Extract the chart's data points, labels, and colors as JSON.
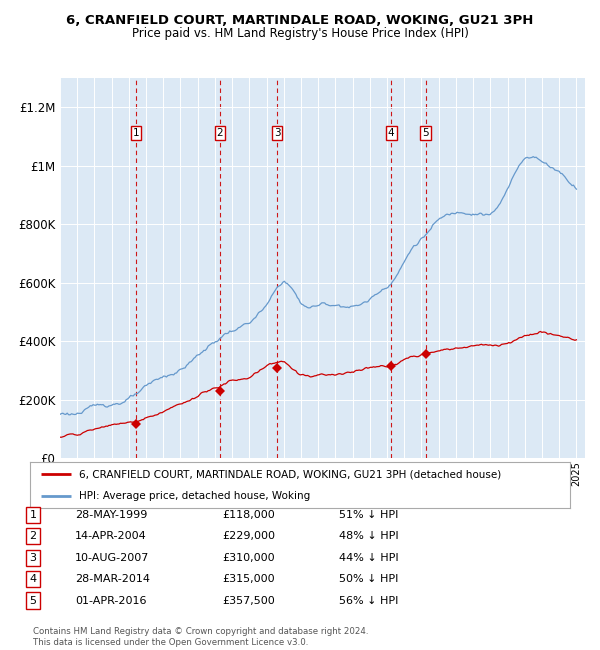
{
  "title": "6, CRANFIELD COURT, MARTINDALE ROAD, WOKING, GU21 3PH",
  "subtitle": "Price paid vs. HM Land Registry's House Price Index (HPI)",
  "xlim_start": 1995.0,
  "xlim_end": 2025.5,
  "ylim_min": 0,
  "ylim_max": 1300000,
  "yticks": [
    0,
    200000,
    400000,
    600000,
    800000,
    1000000,
    1200000
  ],
  "ytick_labels": [
    "£0",
    "£200K",
    "£400K",
    "£600K",
    "£800K",
    "£1M",
    "£1.2M"
  ],
  "plot_bg_color": "#dce9f5",
  "sale_color": "#cc0000",
  "hpi_color": "#6699cc",
  "sale_label": "6, CRANFIELD COURT, MARTINDALE ROAD, WOKING, GU21 3PH (detached house)",
  "hpi_label": "HPI: Average price, detached house, Woking",
  "transactions": [
    {
      "num": 1,
      "date": "28-MAY-1999",
      "price": 118000,
      "year": 1999.41,
      "pct": "51% ↓ HPI"
    },
    {
      "num": 2,
      "date": "14-APR-2004",
      "price": 229000,
      "year": 2004.29,
      "pct": "48% ↓ HPI"
    },
    {
      "num": 3,
      "date": "10-AUG-2007",
      "price": 310000,
      "year": 2007.61,
      "pct": "44% ↓ HPI"
    },
    {
      "num": 4,
      "date": "28-MAR-2014",
      "price": 315000,
      "year": 2014.24,
      "pct": "50% ↓ HPI"
    },
    {
      "num": 5,
      "date": "01-APR-2016",
      "price": 357500,
      "year": 2016.25,
      "pct": "56% ↓ HPI"
    }
  ],
  "footer": "Contains HM Land Registry data © Crown copyright and database right 2024.\nThis data is licensed under the Open Government Licence v3.0.",
  "vline_color": "#cc0000",
  "marker_color": "#cc0000",
  "hpi_anchors_x": [
    1995.0,
    1995.5,
    1996.0,
    1996.5,
    1997.0,
    1997.5,
    1998.0,
    1998.5,
    1999.0,
    1999.5,
    2000.0,
    2000.5,
    2001.0,
    2001.5,
    2002.0,
    2002.5,
    2003.0,
    2003.5,
    2004.0,
    2004.5,
    2005.0,
    2005.5,
    2006.0,
    2006.5,
    2007.0,
    2007.5,
    2008.0,
    2008.5,
    2009.0,
    2009.5,
    2010.0,
    2010.5,
    2011.0,
    2011.5,
    2012.0,
    2012.5,
    2013.0,
    2013.5,
    2014.0,
    2014.5,
    2015.0,
    2015.5,
    2016.0,
    2016.5,
    2017.0,
    2017.5,
    2018.0,
    2018.5,
    2019.0,
    2019.5,
    2020.0,
    2020.5,
    2021.0,
    2021.5,
    2022.0,
    2022.5,
    2023.0,
    2023.5,
    2024.0,
    2024.5,
    2025.0
  ],
  "hpi_anchors_y": [
    150000,
    152000,
    155000,
    160000,
    168000,
    175000,
    183000,
    193000,
    203000,
    215000,
    228000,
    242000,
    255000,
    268000,
    283000,
    305000,
    330000,
    355000,
    375000,
    400000,
    415000,
    425000,
    440000,
    465000,
    490000,
    535000,
    575000,
    545000,
    490000,
    480000,
    485000,
    490000,
    488000,
    492000,
    487000,
    495000,
    510000,
    535000,
    560000,
    600000,
    650000,
    700000,
    730000,
    760000,
    790000,
    800000,
    810000,
    820000,
    825000,
    830000,
    820000,
    850000,
    900000,
    960000,
    1010000,
    1020000,
    1000000,
    980000,
    970000,
    940000,
    920000
  ],
  "sale_anchors_x": [
    1995.0,
    1995.5,
    1996.0,
    1996.5,
    1997.0,
    1997.5,
    1998.0,
    1998.5,
    1999.0,
    1999.41,
    1999.5,
    2000.0,
    2001.0,
    2002.0,
    2003.0,
    2004.0,
    2004.29,
    2004.5,
    2005.0,
    2005.5,
    2006.0,
    2006.5,
    2007.0,
    2007.61,
    2008.0,
    2008.5,
    2009.0,
    2009.5,
    2010.0,
    2010.5,
    2011.0,
    2011.5,
    2012.0,
    2012.5,
    2013.0,
    2013.5,
    2014.0,
    2014.24,
    2014.5,
    2015.0,
    2015.5,
    2016.0,
    2016.25,
    2016.5,
    2017.0,
    2017.5,
    2018.0,
    2018.5,
    2019.0,
    2019.5,
    2020.0,
    2020.5,
    2021.0,
    2021.5,
    2022.0,
    2022.5,
    2023.0,
    2023.5,
    2024.0,
    2024.5,
    2025.0
  ],
  "sale_anchors_y": [
    72000,
    76000,
    80000,
    85000,
    92000,
    100000,
    108000,
    113000,
    116000,
    118000,
    120000,
    135000,
    155000,
    175000,
    200000,
    228000,
    229000,
    235000,
    245000,
    250000,
    260000,
    275000,
    295000,
    310000,
    315000,
    295000,
    275000,
    270000,
    278000,
    285000,
    290000,
    295000,
    300000,
    308000,
    315000,
    318000,
    315000,
    315000,
    320000,
    330000,
    340000,
    350000,
    357500,
    360000,
    365000,
    368000,
    372000,
    375000,
    378000,
    380000,
    375000,
    380000,
    390000,
    400000,
    415000,
    420000,
    425000,
    420000,
    415000,
    410000,
    405000
  ]
}
